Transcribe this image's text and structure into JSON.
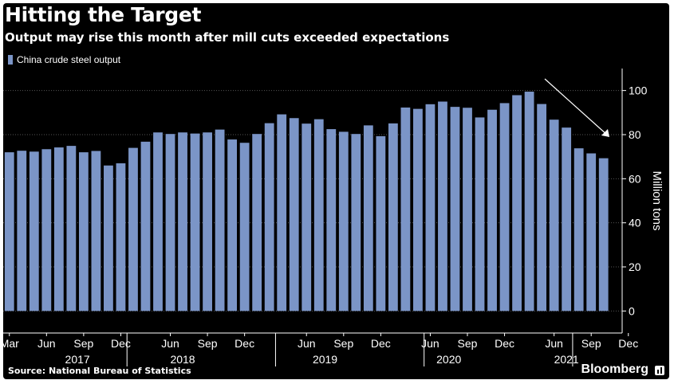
{
  "header": {
    "title": "Hitting the Target",
    "subtitle": "Output may rise this month after mill cuts exceeded expectations"
  },
  "legend": {
    "label": "China crude steel output"
  },
  "footer": {
    "source": "Source: National Bureau of Statistics",
    "brand": "Bloomberg"
  },
  "colors": {
    "background": "#000000",
    "bar": "#7b95c7",
    "text": "#ffffff",
    "grid": "#555555"
  },
  "chart_data": {
    "type": "bar",
    "series": [
      {
        "name": "China crude steel output",
        "values": [
          72,
          72.7,
          72.3,
          73.4,
          74.2,
          74.9,
          72,
          72.6,
          66,
          67,
          74,
          76.8,
          81,
          80.3,
          81,
          80.5,
          81,
          82.3,
          77.8,
          76.3,
          80.3,
          85.2,
          89.2,
          87.5,
          85,
          87,
          82.5,
          81.3,
          80.3,
          84.2,
          79.3,
          85.1,
          92.3,
          91.7,
          93.8,
          95,
          92.6,
          92.2,
          87.8,
          91.3,
          94.3,
          97.9,
          99.5,
          93.9,
          86.8,
          83.2,
          73.8,
          71.5,
          69.3
        ]
      }
    ],
    "x_tick_labels": [
      "Mar",
      "Jun",
      "Sep",
      "Dec",
      "Jun",
      "Sep",
      "Dec",
      "Jun",
      "Sep",
      "Dec",
      "Jun",
      "Sep",
      "Dec",
      "Jun",
      "Sep",
      "Dec"
    ],
    "x_tick_indices": [
      0,
      3,
      6,
      9,
      13,
      16,
      19,
      24,
      27,
      30,
      34,
      37,
      40,
      44,
      47,
      50
    ],
    "year_labels": [
      "2017",
      "2018",
      "2019",
      "2020",
      "2021"
    ],
    "year_center_indices": [
      5.5,
      14,
      25.5,
      35.5,
      45
    ],
    "year_boundary_indices": [
      10,
      22,
      34,
      46
    ],
    "y_ticks": [
      0,
      20,
      40,
      60,
      80,
      100
    ],
    "ylim": [
      -10,
      110
    ],
    "ylabel": "Million tons",
    "axis_side": "right",
    "grid": true,
    "legend_position": "top-left",
    "annotation": "downward arrow from peak toward latest value"
  }
}
